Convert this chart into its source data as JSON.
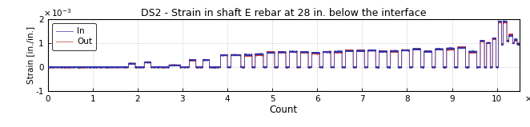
{
  "title": "DS2 - Strain in shaft E rebar at 28 in. below the interface",
  "xlabel": "Count",
  "ylabel": "Strain [in./in.]",
  "xlim": [
    0,
    105000
  ],
  "ylim": [
    -0.001,
    0.002
  ],
  "yticks": [
    -0.001,
    0,
    0.001,
    0.002
  ],
  "ytick_labels": [
    "-1",
    "0",
    "1",
    "2"
  ],
  "xticks": [
    0,
    10000,
    20000,
    30000,
    40000,
    50000,
    60000,
    70000,
    80000,
    90000,
    100000
  ],
  "xtick_labels": [
    "0",
    "1",
    "2",
    "3",
    "4",
    "5",
    "6",
    "7",
    "8",
    "9",
    "10"
  ],
  "color_in": "#3333aa",
  "color_out": "#cc3333",
  "legend_labels": [
    "In",
    "Out"
  ],
  "background_color": "#ffffff",
  "grid_color": "#bbbbbb",
  "linewidth": 0.5,
  "figsize": [
    6.62,
    1.59
  ],
  "dpi": 100
}
